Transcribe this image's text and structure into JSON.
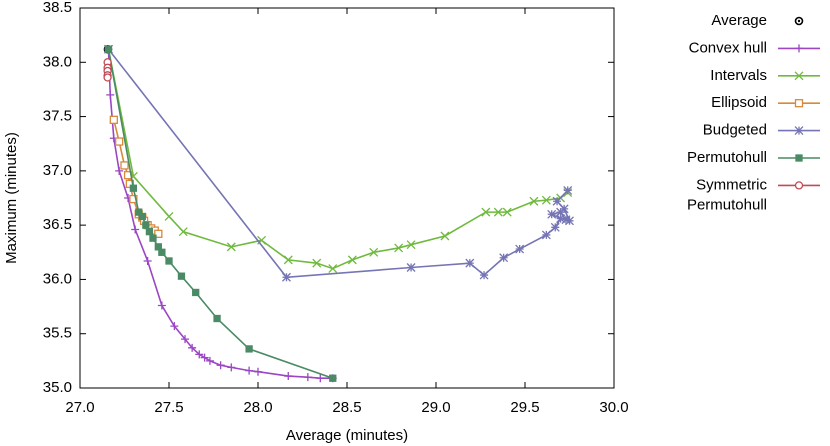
{
  "chart_data": {
    "type": "line",
    "xlabel": "Average (minutes)",
    "ylabel": "Maximum (minutes)",
    "xlim": [
      27.0,
      30.0
    ],
    "xticks": [
      {
        "value": 27,
        "label": "27.0"
      },
      {
        "value": 27.5,
        "label": "27.5"
      },
      {
        "value": 28,
        "label": "28.0"
      },
      {
        "value": 28.5,
        "label": "28.5"
      },
      {
        "value": 29,
        "label": "29.0"
      },
      {
        "value": 29.5,
        "label": "29.5"
      },
      {
        "value": 30,
        "label": "30.0"
      }
    ],
    "ylim": [
      35.0,
      38.5
    ],
    "yticks": [
      {
        "value": 35,
        "label": "35.0"
      },
      35.5,
      {
        "value": 36,
        "label": "36.0"
      },
      36.5,
      {
        "value": 37,
        "label": "37.0"
      },
      37.5,
      {
        "value": 38,
        "label": "38.0"
      },
      38.5
    ],
    "grid": false,
    "legend": "outside-right",
    "series": [
      {
        "name": "Average",
        "color": "#000000",
        "marker": "circle-dot",
        "line": false,
        "x": [
          27.157
        ],
        "y": [
          38.12
        ]
      },
      {
        "name": "Convex hull",
        "color": "#9b46c4",
        "marker": "plus",
        "line": true,
        "x": [
          27.16,
          27.17,
          27.19,
          27.22,
          27.27,
          27.31,
          27.38,
          27.46,
          27.53,
          27.59,
          27.63,
          27.67,
          27.7,
          27.73,
          27.79,
          27.85,
          27.95,
          28.0,
          28.17,
          28.28,
          28.35,
          28.42
        ],
        "y": [
          38.12,
          37.7,
          37.3,
          37.0,
          36.75,
          36.46,
          36.17,
          35.76,
          35.57,
          35.45,
          35.37,
          35.31,
          35.28,
          35.25,
          35.21,
          35.19,
          35.16,
          35.15,
          35.11,
          35.1,
          35.09,
          35.09
        ]
      },
      {
        "name": "Intervals",
        "color": "#6fba3e",
        "marker": "cross",
        "line": true,
        "x": [
          27.16,
          27.3,
          27.5,
          27.58,
          27.85,
          28.02,
          28.17,
          28.33,
          28.42,
          28.53,
          28.65,
          28.79,
          28.86,
          29.05,
          29.28,
          29.35,
          29.4,
          29.55,
          29.62,
          29.7,
          29.74
        ],
        "y": [
          38.12,
          36.95,
          36.58,
          36.44,
          36.3,
          36.36,
          36.18,
          36.15,
          36.1,
          36.18,
          36.25,
          36.29,
          36.32,
          36.4,
          36.62,
          36.62,
          36.62,
          36.72,
          36.73,
          36.75,
          36.8
        ]
      },
      {
        "name": "Ellipsoid",
        "color": "#d8893b",
        "marker": "square-open",
        "line": true,
        "x": [
          27.19,
          27.22,
          27.25,
          27.27,
          27.28,
          27.3,
          27.33,
          27.35,
          27.36,
          27.38,
          27.4,
          27.42,
          27.44
        ],
        "y": [
          37.47,
          37.27,
          37.05,
          36.96,
          36.88,
          36.74,
          36.6,
          36.57,
          36.54,
          36.5,
          36.47,
          36.45,
          36.42
        ]
      },
      {
        "name": "Budgeted",
        "color": "#7574b4",
        "marker": "star",
        "line": true,
        "x": [
          27.16,
          28.16,
          28.86,
          29.19,
          29.27,
          29.38,
          29.47,
          29.62,
          29.67,
          29.7,
          29.65,
          29.7,
          29.73,
          29.75,
          29.72,
          29.68,
          29.74
        ],
        "y": [
          38.12,
          36.02,
          36.11,
          36.15,
          36.04,
          36.2,
          36.28,
          36.41,
          36.48,
          36.56,
          36.6,
          36.62,
          36.55,
          36.54,
          36.65,
          36.72,
          36.82
        ]
      },
      {
        "name": "Permutohull",
        "color": "#4a8a64",
        "marker": "square-filled",
        "line": true,
        "x": [
          27.16,
          27.3,
          27.33,
          27.35,
          27.37,
          27.39,
          27.41,
          27.44,
          27.46,
          27.5,
          27.57,
          27.65,
          27.77,
          27.95,
          28.42
        ],
        "y": [
          38.12,
          36.84,
          36.62,
          36.58,
          36.5,
          36.44,
          36.38,
          36.3,
          36.25,
          36.17,
          36.03,
          35.88,
          35.64,
          35.36,
          35.09
        ]
      },
      {
        "name": "Symmetric Permutohull",
        "color": "#c34a55",
        "marker": "circle-open",
        "line": true,
        "x": [
          27.155,
          27.155,
          27.155,
          27.155,
          27.155
        ],
        "y": [
          38.0,
          37.95,
          37.92,
          37.88,
          37.86
        ]
      }
    ]
  }
}
